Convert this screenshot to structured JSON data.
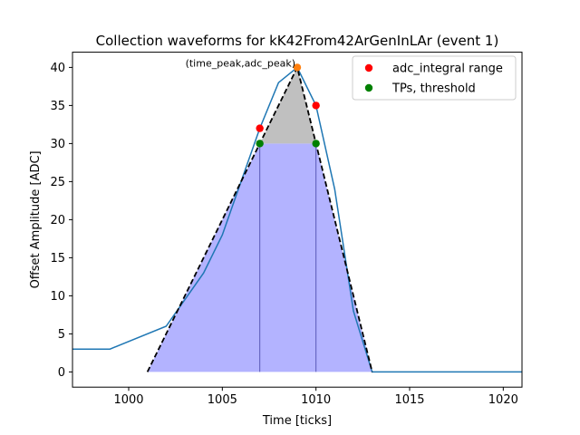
{
  "chart_data": {
    "type": "line",
    "title": "Collection waveforms for kK42From42ArGenInLAr (event 1)",
    "xlabel": "Time [ticks]",
    "ylabel": "Offset Amplitude [ADC]",
    "xlim": [
      997,
      1021
    ],
    "ylim": [
      -2,
      42
    ],
    "xticks": [
      1000,
      1005,
      1010,
      1015,
      1020
    ],
    "yticks": [
      0,
      5,
      10,
      15,
      20,
      25,
      30,
      35,
      40
    ],
    "grid": false,
    "legend_position": "top-right",
    "waveform": {
      "color": "#1f77b4",
      "x": [
        997,
        999,
        1002,
        1004,
        1005,
        1006,
        1007,
        1008,
        1009,
        1010,
        1011,
        1012,
        1013,
        1014,
        1021
      ],
      "y": [
        3,
        3,
        6,
        13,
        18,
        25,
        32,
        38,
        40,
        35,
        24,
        8,
        0,
        0,
        0
      ]
    },
    "triangle": {
      "color": "#000000",
      "x": [
        1001,
        1009,
        1013
      ],
      "y": [
        0,
        40,
        0
      ]
    },
    "fill_tp_region": {
      "color": "#8080ff",
      "x": [
        1001,
        1007,
        1010,
        1013
      ],
      "y": [
        0,
        30,
        30,
        0
      ]
    },
    "fill_integral_region": {
      "color": "#c0c0c0",
      "x": [
        1007,
        1009,
        1010
      ],
      "y": [
        30,
        40,
        30
      ]
    },
    "series": [
      {
        "name": "adc_integral range",
        "color": "#ff0000",
        "x": [
          1007,
          1010
        ],
        "y": [
          32,
          35
        ]
      },
      {
        "name": "TPs, threshold",
        "color": "#008000",
        "x": [
          1007,
          1010
        ],
        "y": [
          30,
          30
        ]
      }
    ],
    "peak_point": {
      "color": "#ff7f0e",
      "x": 1009,
      "y": 40
    },
    "annotation": {
      "text": "(time_peak,adc_peak)",
      "x": 1009,
      "y": 40
    }
  }
}
